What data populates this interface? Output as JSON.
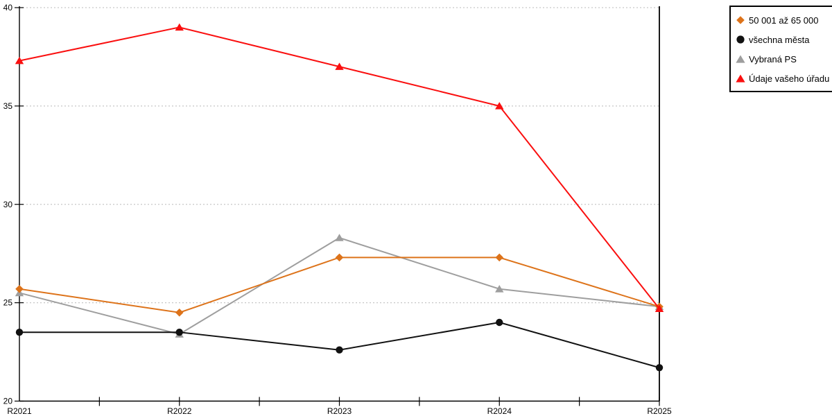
{
  "chart_data": {
    "type": "line",
    "title": "",
    "xlabel": "",
    "ylabel": "",
    "categories": [
      "R2021",
      "R2022",
      "R2023",
      "R2024",
      "R2025"
    ],
    "series": [
      {
        "name": "50 001 až 65 000",
        "marker": "diamond",
        "color": "#DD731A",
        "values": [
          25.7,
          24.5,
          27.3,
          27.3,
          24.8
        ]
      },
      {
        "name": "všechna města",
        "marker": "circle",
        "color": "#111111",
        "values": [
          23.5,
          23.5,
          22.6,
          24.0,
          21.7
        ]
      },
      {
        "name": "Vybraná PS",
        "marker": "triangle",
        "color": "#9E9E9E",
        "values": [
          25.5,
          23.4,
          28.3,
          25.7,
          24.8
        ]
      },
      {
        "name": "Údaje vašeho úřadu",
        "marker": "triangle",
        "color": "#FA0F0F",
        "values": [
          37.3,
          39.0,
          37.0,
          35.0,
          24.7
        ]
      }
    ],
    "ylim": [
      20,
      40
    ],
    "yticks": [
      20,
      25,
      30,
      35,
      40
    ],
    "grid": true,
    "gridline_color": "#C6C6C6",
    "axis_color": "#000000",
    "legend_position": "top-right"
  }
}
